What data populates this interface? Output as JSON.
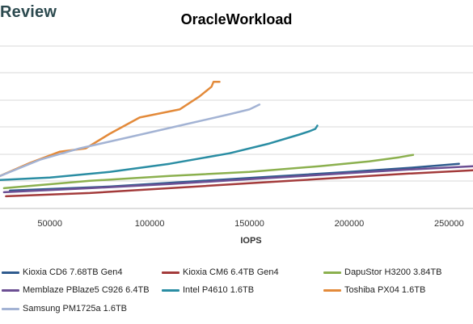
{
  "brand": {
    "text": "Review"
  },
  "chart_data": {
    "type": "line",
    "title": "OracleWorkload",
    "xlabel": "IOPS",
    "ylabel": "",
    "xlim": [
      25000,
      262000
    ],
    "ylim": [
      0,
      1
    ],
    "x_ticks": [
      50000,
      100000,
      150000,
      200000,
      250000
    ],
    "x_tick_labels": [
      "50000",
      "100000",
      "150000",
      "200000",
      "250000"
    ],
    "y_tick_labels": [],
    "grid": "horizontal",
    "legend_position": "bottom",
    "series": [
      {
        "name": "Kioxia CD6 7.68TB Gen4",
        "color": "#2f5b8e",
        "points": [
          [
            30000,
            0.11
          ],
          [
            80000,
            0.135
          ],
          [
            120000,
            0.165
          ],
          [
            160000,
            0.195
          ],
          [
            200000,
            0.225
          ],
          [
            230000,
            0.25
          ],
          [
            255000,
            0.275
          ]
        ]
      },
      {
        "name": "Kioxia CM6 6.4TB Gen4",
        "color": "#a33b3b",
        "points": [
          [
            28000,
            0.075
          ],
          [
            70000,
            0.095
          ],
          [
            110000,
            0.125
          ],
          [
            150000,
            0.155
          ],
          [
            190000,
            0.185
          ],
          [
            230000,
            0.215
          ],
          [
            262000,
            0.235
          ]
        ]
      },
      {
        "name": "DapuStor H3200 3.84TB",
        "color": "#8bb04e",
        "points": [
          [
            27000,
            0.125
          ],
          [
            70000,
            0.17
          ],
          [
            110000,
            0.2
          ],
          [
            150000,
            0.225
          ],
          [
            185000,
            0.26
          ],
          [
            210000,
            0.29
          ],
          [
            225000,
            0.315
          ],
          [
            232000,
            0.33
          ]
        ]
      },
      {
        "name": "Memblaze PBlaze5 C926 6.4TB",
        "color": "#6c4f93",
        "points": [
          [
            27000,
            0.1
          ],
          [
            70000,
            0.125
          ],
          [
            110000,
            0.15
          ],
          [
            150000,
            0.18
          ],
          [
            190000,
            0.21
          ],
          [
            230000,
            0.24
          ],
          [
            262000,
            0.26
          ]
        ]
      },
      {
        "name": "Intel P4610 1.6TB",
        "color": "#2a8da3",
        "points": [
          [
            25000,
            0.175
          ],
          [
            50000,
            0.19
          ],
          [
            80000,
            0.225
          ],
          [
            110000,
            0.275
          ],
          [
            140000,
            0.34
          ],
          [
            160000,
            0.4
          ],
          [
            175000,
            0.455
          ],
          [
            180000,
            0.475
          ],
          [
            183000,
            0.49
          ],
          [
            184000,
            0.51
          ]
        ]
      },
      {
        "name": "Toshiba PX04 1.6TB",
        "color": "#e38a3a",
        "points": [
          [
            25000,
            0.2
          ],
          [
            40000,
            0.28
          ],
          [
            55000,
            0.35
          ],
          [
            68000,
            0.37
          ],
          [
            80000,
            0.46
          ],
          [
            95000,
            0.56
          ],
          [
            115000,
            0.61
          ],
          [
            125000,
            0.69
          ],
          [
            131000,
            0.75
          ],
          [
            132000,
            0.78
          ],
          [
            135000,
            0.78
          ]
        ]
      },
      {
        "name": "Samsung PM1725a 1.6TB",
        "color": "#a3b3d4",
        "points": [
          [
            25000,
            0.2
          ],
          [
            45000,
            0.3
          ],
          [
            65000,
            0.37
          ],
          [
            90000,
            0.44
          ],
          [
            115000,
            0.51
          ],
          [
            140000,
            0.58
          ],
          [
            150000,
            0.61
          ],
          [
            155000,
            0.64
          ]
        ]
      }
    ]
  }
}
